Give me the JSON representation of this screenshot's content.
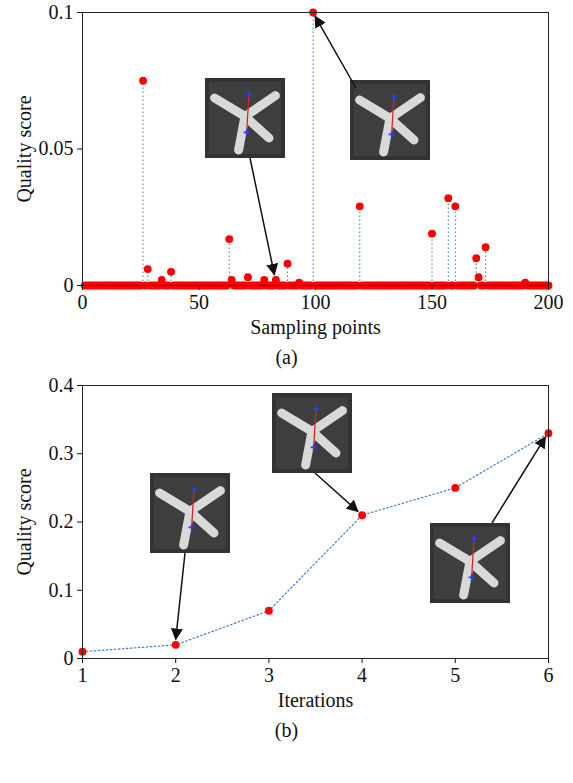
{
  "chart_data": [
    {
      "type": "stem",
      "caption": "(a)",
      "x_label": "Sampling points",
      "y_label": "Quality score",
      "color": "#ff0000",
      "marker": "circle",
      "line_style": "dotted",
      "x": [
        1,
        2,
        3,
        4,
        5,
        6,
        7,
        8,
        9,
        10,
        11,
        12,
        13,
        14,
        15,
        16,
        17,
        18,
        19,
        20,
        21,
        22,
        23,
        24,
        25,
        26,
        27,
        28,
        29,
        30,
        31,
        32,
        33,
        34,
        35,
        36,
        37,
        38,
        39,
        40,
        41,
        42,
        43,
        44,
        45,
        46,
        47,
        48,
        49,
        50,
        51,
        52,
        53,
        54,
        55,
        56,
        57,
        58,
        59,
        60,
        61,
        62,
        63,
        64,
        65,
        66,
        67,
        68,
        69,
        70,
        71,
        72,
        73,
        74,
        75,
        76,
        77,
        78,
        79,
        80,
        81,
        82,
        83,
        84,
        85,
        86,
        87,
        88,
        89,
        90,
        91,
        92,
        93,
        94,
        95,
        96,
        97,
        98,
        99,
        100,
        101,
        102,
        103,
        104,
        105,
        106,
        107,
        108,
        109,
        110,
        111,
        112,
        113,
        114,
        115,
        116,
        117,
        118,
        119,
        120,
        121,
        122,
        123,
        124,
        125,
        126,
        127,
        128,
        129,
        130,
        131,
        132,
        133,
        134,
        135,
        136,
        137,
        138,
        139,
        140,
        141,
        142,
        143,
        144,
        145,
        146,
        147,
        148,
        149,
        150,
        151,
        152,
        153,
        154,
        155,
        156,
        157,
        158,
        159,
        160,
        161,
        162,
        163,
        164,
        165,
        166,
        167,
        168,
        169,
        170,
        171,
        172,
        173,
        174,
        175,
        176,
        177,
        178,
        179,
        180,
        181,
        182,
        183,
        184,
        185,
        186,
        187,
        188,
        189,
        190,
        191,
        192,
        193,
        194,
        195,
        196,
        197,
        198,
        199,
        200
      ],
      "values": [
        0,
        0,
        0,
        0,
        0,
        0,
        0,
        0,
        0,
        0,
        0,
        0,
        0,
        0,
        0,
        0,
        0,
        0,
        0,
        0,
        0,
        0,
        0,
        0,
        0,
        0.075,
        0,
        0.006,
        0,
        0,
        0,
        0,
        0,
        0.002,
        0,
        0,
        0,
        0.005,
        0,
        0,
        0,
        0,
        0,
        0,
        0,
        0,
        0,
        0,
        0,
        0,
        0,
        0,
        0,
        0,
        0,
        0,
        0,
        0,
        0,
        0,
        0,
        0,
        0.017,
        0.002,
        0,
        0,
        0,
        0,
        0,
        0,
        0.003,
        0,
        0,
        0,
        0,
        0,
        0,
        0.002,
        0,
        0,
        0,
        0,
        0.002,
        0,
        0,
        0,
        0,
        0.008,
        0,
        0,
        0,
        0,
        0.001,
        0,
        0,
        0,
        0,
        0,
        0.1,
        0,
        0,
        0,
        0,
        0,
        0,
        0,
        0,
        0,
        0,
        0,
        0,
        0,
        0,
        0,
        0,
        0,
        0,
        0,
        0.029,
        0,
        0,
        0,
        0,
        0,
        0,
        0,
        0,
        0,
        0,
        0,
        0,
        0,
        0,
        0,
        0,
        0,
        0,
        0,
        0,
        0,
        0,
        0,
        0,
        0,
        0,
        0,
        0,
        0,
        0,
        0.019,
        0,
        0,
        0,
        0,
        0,
        0,
        0.032,
        0,
        0,
        0.029,
        0,
        0,
        0,
        0,
        0,
        0,
        0,
        0,
        0.01,
        0.003,
        0,
        0,
        0.014,
        0,
        0,
        0,
        0,
        0,
        0,
        0,
        0,
        0,
        0,
        0,
        0,
        0,
        0,
        0,
        0,
        0.001,
        0,
        0,
        0,
        0,
        0,
        0,
        0,
        0,
        0,
        0
      ],
      "highlighted_x": [
        83,
        99
      ],
      "xlim": [
        0,
        200
      ],
      "xticks": [
        0,
        50,
        100,
        150,
        200
      ],
      "ylim": [
        0,
        0.1
      ],
      "yticks": [
        0,
        0.05,
        0.1
      ]
    },
    {
      "type": "line",
      "caption": "(b)",
      "x_label": "Iterations",
      "y_label": "Quality score",
      "color": "#ff0000",
      "marker": "circle",
      "line_style": "dotted",
      "x": [
        1,
        2,
        3,
        4,
        5,
        6
      ],
      "values": [
        0.01,
        0.02,
        0.07,
        0.21,
        0.25,
        0.33
      ],
      "highlighted_x": [
        2,
        4,
        6
      ],
      "xlim": [
        1,
        6
      ],
      "xticks": [
        1,
        2,
        3,
        4,
        5,
        6
      ],
      "ylim": [
        0,
        0.4
      ],
      "yticks": [
        0,
        0.1,
        0.2,
        0.3,
        0.4
      ]
    }
  ]
}
